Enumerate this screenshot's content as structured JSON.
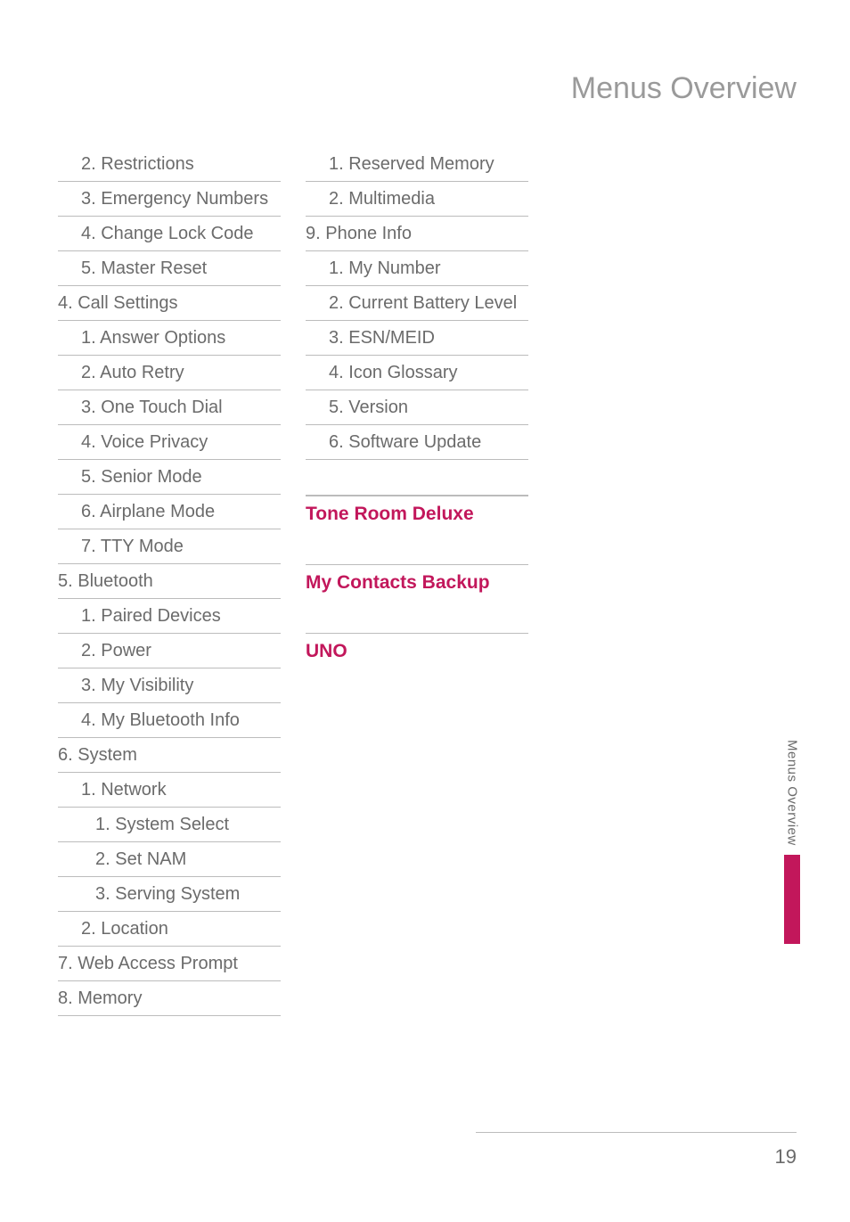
{
  "page": {
    "title": "Menus Overview",
    "side_tab": "Menus Overview",
    "page_number": "19",
    "colors": {
      "accent": "#c2175b",
      "text": "#6b6b6b",
      "title": "#9a9a9a",
      "rule": "#bcbcbc",
      "bg": "#ffffff"
    },
    "typography": {
      "body_fontsize": 20,
      "title_fontsize": 34,
      "heading_fontsize": 21,
      "sidetab_fontsize": 15,
      "pagenum_fontsize": 22
    }
  },
  "col1": [
    {
      "text": "2. Restrictions",
      "indent": 1
    },
    {
      "text": "3. Emergency Numbers",
      "indent": 1
    },
    {
      "text": "4. Change Lock Code",
      "indent": 1
    },
    {
      "text": "5. Master Reset",
      "indent": 1
    },
    {
      "text": "4. Call Settings",
      "indent": 0
    },
    {
      "text": "1. Answer Options",
      "indent": 1
    },
    {
      "text": "2. Auto Retry",
      "indent": 1
    },
    {
      "text": "3. One Touch Dial",
      "indent": 1
    },
    {
      "text": "4. Voice Privacy",
      "indent": 1
    },
    {
      "text": "5. Senior Mode",
      "indent": 1
    },
    {
      "text": "6. Airplane Mode",
      "indent": 1
    },
    {
      "text": "7. TTY Mode",
      "indent": 1
    },
    {
      "text": "5. Bluetooth",
      "indent": 0
    },
    {
      "text": "1. Paired Devices",
      "indent": 1
    },
    {
      "text": "2. Power",
      "indent": 1
    },
    {
      "text": "3. My Visibility",
      "indent": 1
    },
    {
      "text": "4. My Bluetooth Info",
      "indent": 1
    },
    {
      "text": "6. System",
      "indent": 0
    },
    {
      "text": "1. Network",
      "indent": 1
    },
    {
      "text": "1. System Select",
      "indent": 2
    },
    {
      "text": "2. Set NAM",
      "indent": 2
    },
    {
      "text": "3. Serving System",
      "indent": 2
    },
    {
      "text": "2. Location",
      "indent": 1
    },
    {
      "text": "7. Web Access Prompt",
      "indent": 0
    },
    {
      "text": "8.  Memory",
      "indent": 0
    }
  ],
  "col2": [
    {
      "text": "1. Reserved Memory",
      "indent": 1
    },
    {
      "text": "2. Multimedia",
      "indent": 1
    },
    {
      "text": "9. Phone Info",
      "indent": 0
    },
    {
      "text": "1. My Number",
      "indent": 1
    },
    {
      "text": "2. Current Battery Level",
      "indent": 1
    },
    {
      "text": "3. ESN/MEID",
      "indent": 1
    },
    {
      "text": "4. Icon Glossary",
      "indent": 1
    },
    {
      "text": "5. Version",
      "indent": 1
    },
    {
      "text": "6. Software Update",
      "indent": 1
    }
  ],
  "sections": {
    "tone": "Tone Room Deluxe",
    "contacts": "My Contacts Backup",
    "uno": "UNO"
  }
}
